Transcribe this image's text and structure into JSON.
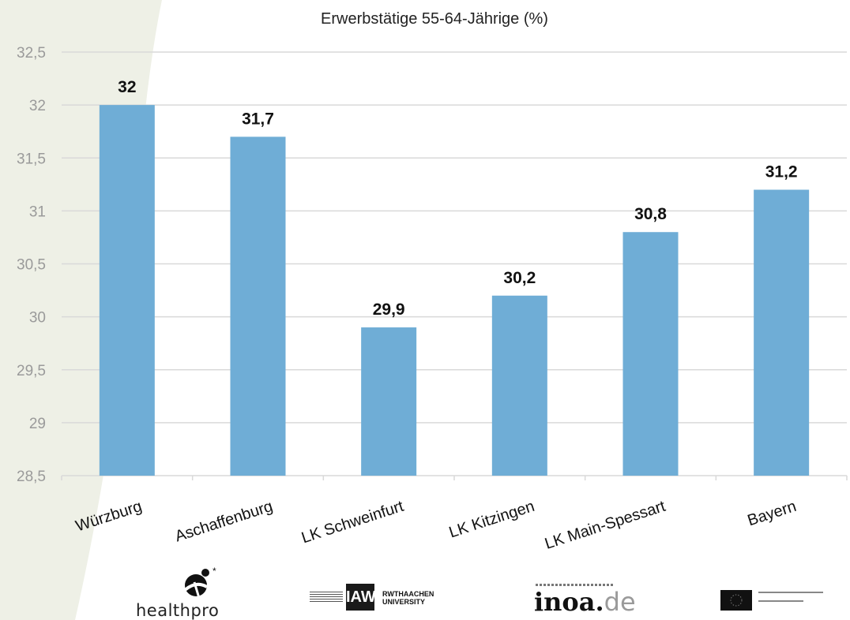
{
  "chart_data": {
    "type": "bar",
    "title": "Erwerbstätige 55-64-Jährige (%)",
    "categories": [
      "Würzburg",
      "Aschaffenburg",
      "LK Schweinfurt",
      "LK Kitzingen",
      "LK Main-Spessart",
      "Bayern"
    ],
    "values": [
      32,
      31.7,
      29.9,
      30.2,
      30.8,
      31.2
    ],
    "data_labels": [
      "32",
      "31,7",
      "29,9",
      "30,2",
      "30,8",
      "31,2"
    ],
    "ylim": [
      28.5,
      32.5
    ],
    "yticks": [
      28.5,
      29,
      29.5,
      30,
      30.5,
      31,
      31.5,
      32,
      32.5
    ],
    "ytick_labels": [
      "28,5",
      "29",
      "29,5",
      "30",
      "30,5",
      "31",
      "31,5",
      "32",
      "32,5"
    ],
    "grid": true,
    "bar_color": "#6fadd6"
  },
  "logos": {
    "healthpro": "healthpro",
    "iaw": "IAW",
    "iaw_secondary": "RWTHAACHEN UNIVERSITY",
    "inoa_main": "inoa.",
    "inoa_tld": "de"
  },
  "icons": [
    "healthpro-figure-icon",
    "eu-flag-icon"
  ]
}
